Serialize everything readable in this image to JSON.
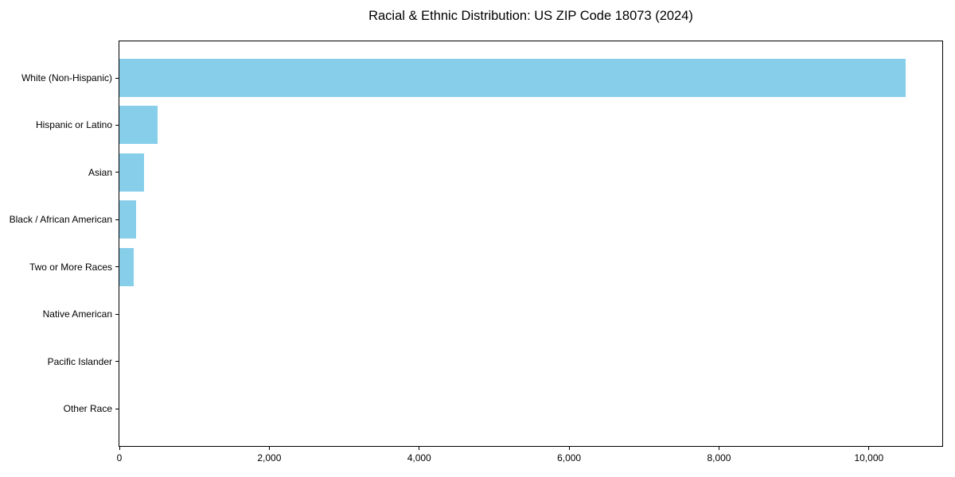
{
  "chart_data": {
    "type": "bar",
    "orientation": "horizontal",
    "title": "Racial & Ethnic Distribution: US ZIP Code 18073 (2024)",
    "categories": [
      "White (Non-Hispanic)",
      "Hispanic or Latino",
      "Asian",
      "Black / African American",
      "Two or More Races",
      "Native American",
      "Pacific Islander",
      "Other Race"
    ],
    "values": [
      10490,
      510,
      330,
      225,
      190,
      0,
      0,
      0
    ],
    "xlabel": "",
    "ylabel": "",
    "xlim": [
      0,
      11000
    ],
    "x_ticks": [
      0,
      2000,
      4000,
      6000,
      8000,
      10000
    ],
    "x_tick_labels": [
      "0",
      "2,000",
      "4,000",
      "6,000",
      "8,000",
      "10,000"
    ],
    "bar_color": "#87CEEB",
    "axis_color": "#000000",
    "text_color": "#000000",
    "background_color": "#FFFFFF",
    "grid": false,
    "legend": "none"
  }
}
